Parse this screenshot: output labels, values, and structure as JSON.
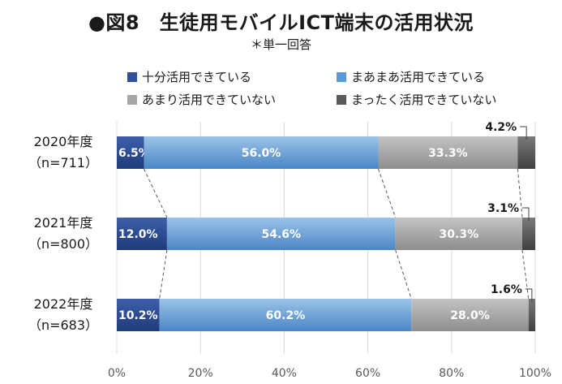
{
  "title": "●図8　生徒用モバイルICT端末の活用状況",
  "subtitle": "＊単一回答",
  "legend": [
    {
      "label": "十分活用できている",
      "color": "#2e4f99"
    },
    {
      "label": "まあまあ活用できている",
      "color": "#5b9bd5"
    },
    {
      "label": "あまり活用できていない",
      "color": "#a6a6a6"
    },
    {
      "label": "まったく活用できていない",
      "color": "#595959"
    }
  ],
  "chart_data": {
    "type": "bar",
    "orientation": "horizontal",
    "stacked": "100%",
    "categories": [
      {
        "year": "2020年度",
        "n": "（n=711）"
      },
      {
        "year": "2021年度",
        "n": "（n=800）"
      },
      {
        "year": "2022年度",
        "n": "（n=683）"
      }
    ],
    "series": [
      {
        "name": "十分活用できている",
        "values": [
          6.5,
          12.0,
          10.2
        ],
        "labels": [
          "6.5%",
          "12.0%",
          "10.2%"
        ]
      },
      {
        "name": "まあまあ活用できている",
        "values": [
          56.0,
          54.6,
          60.2
        ],
        "labels": [
          "56.0%",
          "54.6%",
          "60.2%"
        ]
      },
      {
        "name": "あまり活用できていない",
        "values": [
          33.3,
          30.3,
          28.0
        ],
        "labels": [
          "33.3%",
          "30.3%",
          "28.0%"
        ]
      },
      {
        "name": "まったく活用できていない",
        "values": [
          4.2,
          3.1,
          1.6
        ],
        "labels": [
          "4.2%",
          "3.1%",
          "1.6%"
        ]
      }
    ],
    "xticks": [
      "0%",
      "20%",
      "40%",
      "60%",
      "80%",
      "100%"
    ],
    "xlim": [
      0,
      100
    ],
    "grid": true,
    "legend_position": "top",
    "connector_lines": true
  }
}
